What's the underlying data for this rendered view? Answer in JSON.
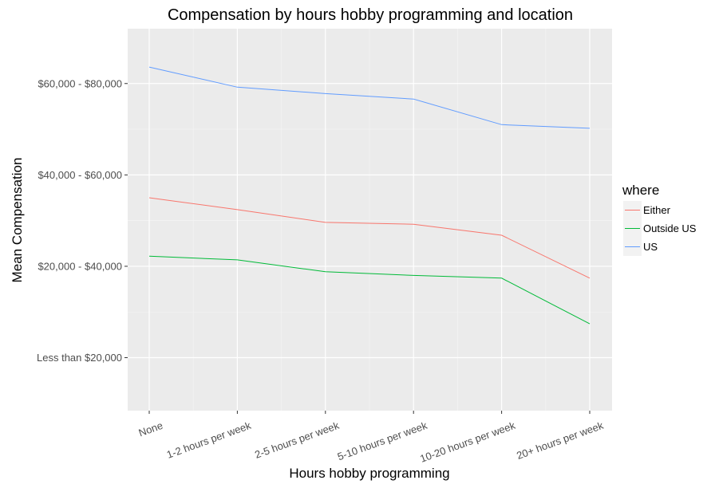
{
  "chart_data": {
    "type": "line",
    "title": "Compensation by hours hobby programming and location",
    "xlabel": "Hours hobby programming",
    "ylabel": "Mean Compensation",
    "categories": [
      "None",
      "1-2 hours per week",
      "2-5 hours per week",
      "5-10 hours per week",
      "10-20 hours per week",
      "20+ hours per week"
    ],
    "y_ticks": [
      {
        "value": 1,
        "label": "Less than $20,000"
      },
      {
        "value": 2,
        "label": "$20,000 - $40,000"
      },
      {
        "value": 3,
        "label": "$40,000 - $60,000"
      },
      {
        "value": 4,
        "label": "$60,000 - $80,000"
      }
    ],
    "ylim": [
      0.42,
      4.6
    ],
    "legend": {
      "title": "where",
      "position": "right"
    },
    "series": [
      {
        "name": "Either",
        "color": "#F8766D",
        "values": [
          2.75,
          2.62,
          2.48,
          2.46,
          2.34,
          1.87
        ]
      },
      {
        "name": "Outside US",
        "color": "#00BA38",
        "values": [
          2.11,
          2.07,
          1.94,
          1.9,
          1.87,
          1.37
        ]
      },
      {
        "name": "US",
        "color": "#619CFF",
        "values": [
          4.18,
          3.96,
          3.89,
          3.83,
          3.55,
          3.51
        ]
      }
    ]
  }
}
